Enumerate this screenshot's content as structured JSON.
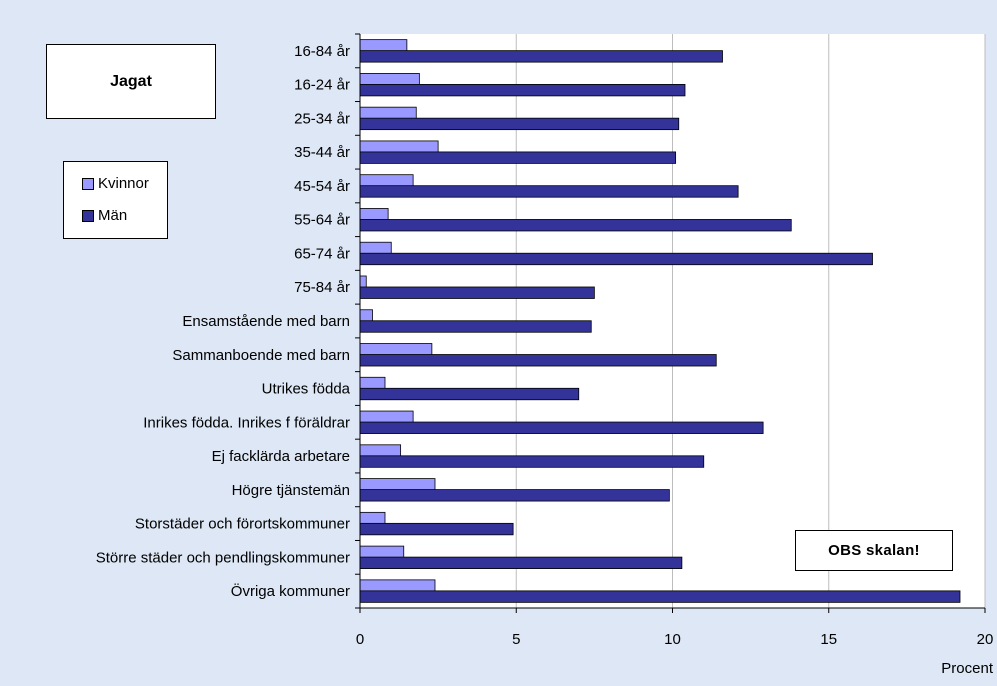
{
  "chart_data": {
    "type": "bar",
    "orientation": "horizontal",
    "title": "Jagat",
    "note": "OBS skalan!",
    "xlabel": "Procent",
    "xlim": [
      0,
      20
    ],
    "xticks": [
      0,
      5,
      10,
      15,
      20
    ],
    "grid": true,
    "legend_position": "left",
    "categories": [
      "16-84 år",
      "16-24 år",
      "25-34 år",
      "35-44 år",
      "45-54 år",
      "55-64 år",
      "65-74 år",
      "75-84 år",
      "Ensamstående med barn",
      "Sammanboende med barn",
      "Utrikes födda",
      "Inrikes födda. Inrikes f föräldrar",
      "Ej facklärda arbetare",
      "Högre tjänstemän",
      "Storstäder och förortskommuner",
      "Större städer och pendlingskommuner",
      "Övriga kommuner"
    ],
    "series": [
      {
        "name": "Kvinnor",
        "color": "#9999ff",
        "values": [
          1.5,
          1.9,
          1.8,
          2.5,
          1.7,
          0.9,
          1.0,
          0.2,
          0.4,
          2.3,
          0.8,
          1.7,
          1.3,
          2.4,
          0.8,
          1.4,
          2.4
        ]
      },
      {
        "name": "Män",
        "color": "#333399",
        "values": [
          11.6,
          10.4,
          10.2,
          10.1,
          12.1,
          13.8,
          16.4,
          7.5,
          7.4,
          11.4,
          7.0,
          12.9,
          11.0,
          9.9,
          4.9,
          10.3,
          19.2
        ]
      }
    ]
  }
}
